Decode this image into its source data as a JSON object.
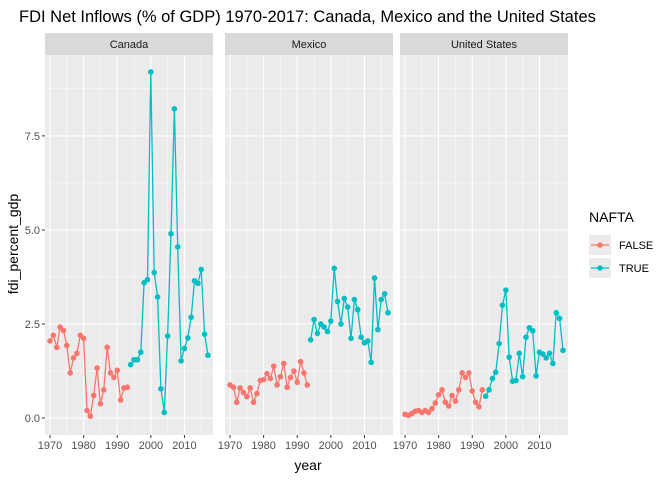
{
  "chart_data": {
    "type": "line",
    "title": "FDI Net Inflows (% of GDP) 1970-2017: Canada, Mexico and the United States",
    "xlabel": "year",
    "ylabel": "fdi_percent_gdp",
    "xlim": [
      1968.5,
      2018.5
    ],
    "ylim": [
      -0.45,
      9.65
    ],
    "x_ticks": [
      1970,
      1980,
      1990,
      2000,
      2010
    ],
    "y_ticks": [
      0.0,
      2.5,
      5.0,
      7.5
    ],
    "y_tick_labels": [
      "0.0",
      "2.5",
      "5.0",
      "7.5"
    ],
    "legend": {
      "title": "NAFTA",
      "position": "right",
      "entries": [
        {
          "label": "FALSE",
          "color": "#F8766D"
        },
        {
          "label": "TRUE",
          "color": "#00BFC4"
        }
      ]
    },
    "panel_colors": {
      "background": "#EBEBEB",
      "grid": "#FFFFFF",
      "strip": "#D9D9D9"
    },
    "facets": [
      {
        "label": "Canada",
        "series": [
          {
            "name": "FALSE",
            "x": [
              1970,
              1971,
              1972,
              1973,
              1974,
              1975,
              1976,
              1977,
              1978,
              1979,
              1980,
              1981,
              1982,
              1983,
              1984,
              1985,
              1986,
              1987,
              1988,
              1989,
              1990,
              1991,
              1992,
              1993
            ],
            "values": [
              2.05,
              2.2,
              1.88,
              2.42,
              2.33,
              1.93,
              1.2,
              1.6,
              1.72,
              2.2,
              2.12,
              0.2,
              0.05,
              0.6,
              1.33,
              0.38,
              0.75,
              1.88,
              1.2,
              1.08,
              1.27,
              0.48,
              0.8,
              0.82
            ]
          },
          {
            "name": "TRUE",
            "x": [
              1994,
              1995,
              1996,
              1997,
              1998,
              1999,
              2000,
              2001,
              2002,
              2003,
              2004,
              2005,
              2006,
              2007,
              2008,
              2009,
              2010,
              2011,
              2012,
              2013,
              2014,
              2015,
              2016,
              2017
            ],
            "values": [
              1.42,
              1.55,
              1.55,
              1.75,
              3.6,
              3.68,
              9.2,
              3.87,
              3.22,
              0.78,
              0.15,
              2.18,
              4.9,
              8.22,
              4.55,
              1.52,
              1.85,
              2.13,
              2.68,
              3.65,
              3.58,
              3.95,
              2.23,
              1.67
            ]
          }
        ]
      },
      {
        "label": "Mexico",
        "series": [
          {
            "name": "FALSE",
            "x": [
              1970,
              1971,
              1972,
              1973,
              1974,
              1975,
              1976,
              1977,
              1978,
              1979,
              1980,
              1981,
              1982,
              1983,
              1984,
              1985,
              1986,
              1987,
              1988,
              1989,
              1990,
              1991,
              1992,
              1993
            ],
            "values": [
              0.88,
              0.82,
              0.42,
              0.8,
              0.68,
              0.57,
              0.8,
              0.42,
              0.65,
              1.0,
              1.02,
              1.18,
              1.05,
              1.38,
              0.88,
              1.1,
              1.45,
              0.82,
              1.08,
              1.25,
              0.95,
              1.5,
              1.2,
              0.88
            ]
          },
          {
            "name": "TRUE",
            "x": [
              1994,
              1995,
              1996,
              1997,
              1998,
              1999,
              2000,
              2001,
              2002,
              2003,
              2004,
              2005,
              2006,
              2007,
              2008,
              2009,
              2010,
              2011,
              2012,
              2013,
              2014,
              2015,
              2016,
              2017
            ],
            "values": [
              2.08,
              2.62,
              2.25,
              2.5,
              2.42,
              2.3,
              2.58,
              3.98,
              3.1,
              2.5,
              3.18,
              2.95,
              2.12,
              3.15,
              2.88,
              2.15,
              2.0,
              2.05,
              1.48,
              3.72,
              2.35,
              3.15,
              3.3,
              2.8
            ]
          }
        ]
      },
      {
        "label": "United States",
        "series": [
          {
            "name": "FALSE",
            "x": [
              1970,
              1971,
              1972,
              1973,
              1974,
              1975,
              1976,
              1977,
              1978,
              1979,
              1980,
              1981,
              1982,
              1983,
              1984,
              1985,
              1986,
              1987,
              1988,
              1989,
              1990,
              1991,
              1992,
              1993
            ],
            "values": [
              0.1,
              0.07,
              0.12,
              0.18,
              0.2,
              0.15,
              0.2,
              0.15,
              0.25,
              0.4,
              0.62,
              0.75,
              0.42,
              0.32,
              0.6,
              0.45,
              0.75,
              1.2,
              1.08,
              1.2,
              0.72,
              0.42,
              0.3,
              0.75
            ]
          },
          {
            "name": "TRUE",
            "x": [
              1994,
              1995,
              1996,
              1997,
              1998,
              1999,
              2000,
              2001,
              2002,
              2003,
              2004,
              2005,
              2006,
              2007,
              2008,
              2009,
              2010,
              2011,
              2012,
              2013,
              2014,
              2015,
              2016,
              2017
            ],
            "values": [
              0.58,
              0.75,
              1.05,
              1.22,
              1.98,
              3.0,
              3.4,
              1.62,
              0.98,
              1.0,
              1.72,
              1.1,
              2.15,
              2.4,
              2.32,
              1.12,
              1.75,
              1.7,
              1.6,
              1.72,
              1.45,
              2.8,
              2.65,
              1.8
            ]
          }
        ]
      }
    ]
  }
}
